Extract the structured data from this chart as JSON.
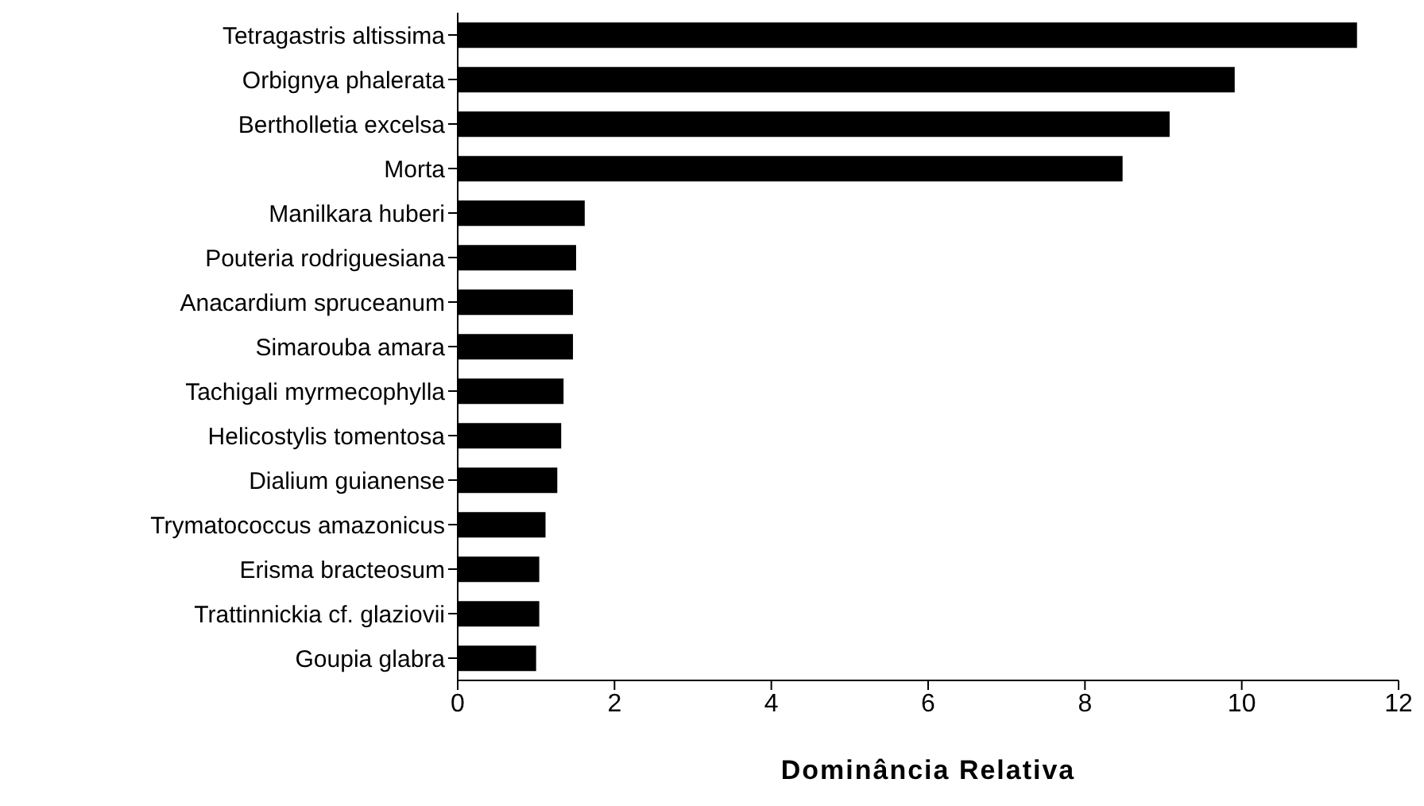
{
  "chart_data": {
    "type": "bar",
    "orientation": "horizontal",
    "xlabel": "Dominância Relativa",
    "categories": [
      "Tetragastris altissima",
      "Orbignya phalerata",
      "Bertholletia excelsa",
      "Morta",
      "Manilkara huberi",
      "Pouteria rodriguesiana",
      "Anacardium spruceanum",
      "Simarouba amara",
      "Tachigali myrmecophylla",
      "Helicostylis tomentosa",
      "Dialium guianense",
      "Trymatococcus amazonicus",
      "Erisma bracteosum",
      "Trattinnickia cf. glaziovii",
      "Goupia glabra"
    ],
    "values": [
      11.47,
      9.91,
      9.08,
      8.48,
      1.62,
      1.51,
      1.47,
      1.47,
      1.35,
      1.32,
      1.27,
      1.12,
      1.04,
      1.04,
      1.0
    ],
    "color": "#000000",
    "xlim": [
      0,
      12
    ],
    "xticks": [
      0,
      2,
      4,
      6,
      8,
      10,
      12
    ],
    "grid": false,
    "legend": false
  }
}
